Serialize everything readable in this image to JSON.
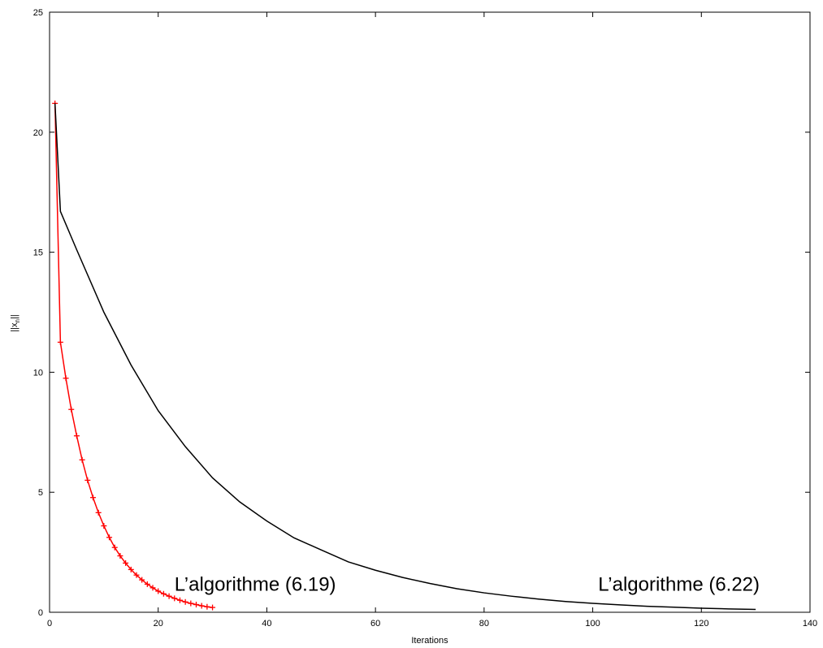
{
  "chart_data": {
    "type": "line",
    "xlabel": "Iterations",
    "ylabel": "||x_n||",
    "xlim": [
      0,
      140
    ],
    "ylim": [
      0,
      25
    ],
    "xticks": [
      0,
      20,
      40,
      60,
      80,
      100,
      120,
      140
    ],
    "yticks": [
      0,
      5,
      10,
      15,
      20,
      25
    ],
    "grid": false,
    "legend": "none",
    "annotations": [
      {
        "text": "L’algorithme (6.19)",
        "x": 23,
        "y": 0.9
      },
      {
        "text": "L’algorithme (6.22)",
        "x": 101,
        "y": 0.9
      }
    ],
    "series": [
      {
        "color": "#ff0000",
        "marker": "+",
        "x": [
          1,
          2,
          3,
          4,
          5,
          6,
          7,
          8,
          9,
          10,
          11,
          12,
          13,
          14,
          15,
          16,
          17,
          18,
          19,
          20,
          21,
          22,
          23,
          24,
          25,
          26,
          27,
          28,
          29,
          30
        ],
        "y": [
          21.2,
          11.25,
          9.75,
          8.45,
          7.35,
          6.35,
          5.5,
          4.78,
          4.15,
          3.6,
          3.12,
          2.7,
          2.35,
          2.05,
          1.78,
          1.55,
          1.35,
          1.17,
          1.02,
          0.88,
          0.77,
          0.67,
          0.58,
          0.5,
          0.43,
          0.37,
          0.32,
          0.27,
          0.23,
          0.2
        ]
      },
      {
        "color": "#000000",
        "marker": "none",
        "x": [
          1,
          2,
          5,
          10,
          15,
          20,
          25,
          30,
          35,
          40,
          45,
          50,
          55,
          60,
          65,
          70,
          75,
          80,
          85,
          90,
          95,
          100,
          105,
          110,
          115,
          120,
          125,
          130
        ],
        "y": [
          21.2,
          16.7,
          15.1,
          12.5,
          10.3,
          8.4,
          6.9,
          5.6,
          4.6,
          3.8,
          3.1,
          2.6,
          2.1,
          1.75,
          1.45,
          1.2,
          0.98,
          0.81,
          0.67,
          0.55,
          0.45,
          0.37,
          0.31,
          0.25,
          0.21,
          0.17,
          0.14,
          0.12
        ]
      }
    ]
  }
}
